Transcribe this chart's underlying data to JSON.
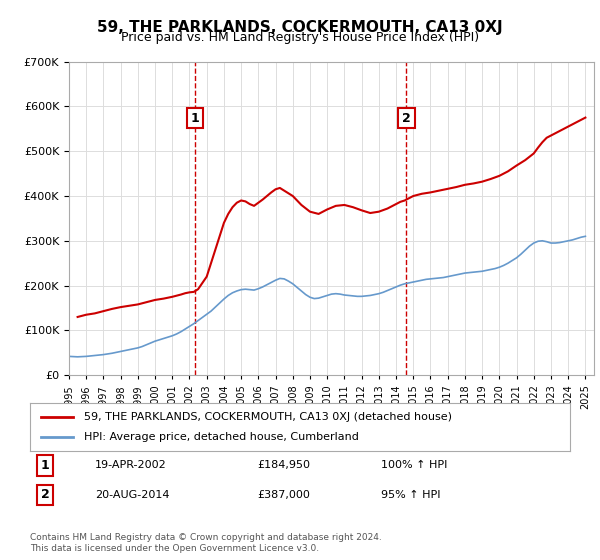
{
  "title": "59, THE PARKLANDS, COCKERMOUTH, CA13 0XJ",
  "subtitle": "Price paid vs. HM Land Registry's House Price Index (HPI)",
  "legend_line1": "59, THE PARKLANDS, COCKERMOUTH, CA13 0XJ (detached house)",
  "legend_line2": "HPI: Average price, detached house, Cumberland",
  "transaction1_label": "1",
  "transaction1_date": "19-APR-2002",
  "transaction1_price": "£184,950",
  "transaction1_pct": "100% ↑ HPI",
  "transaction1_year": 2002.3,
  "transaction2_label": "2",
  "transaction2_date": "20-AUG-2014",
  "transaction2_price": "£387,000",
  "transaction2_pct": "95% ↑ HPI",
  "transaction2_year": 2014.6,
  "footer1": "Contains HM Land Registry data © Crown copyright and database right 2024.",
  "footer2": "This data is licensed under the Open Government Licence v3.0.",
  "red_color": "#cc0000",
  "blue_color": "#6699cc",
  "dashed_color": "#cc0000",
  "background_color": "#ffffff",
  "grid_color": "#dddddd",
  "ylim": [
    0,
    700000
  ],
  "xlim_start": 1995.0,
  "xlim_end": 2025.5,
  "hpi_data": {
    "years": [
      1995.0,
      1995.25,
      1995.5,
      1995.75,
      1996.0,
      1996.25,
      1996.5,
      1996.75,
      1997.0,
      1997.25,
      1997.5,
      1997.75,
      1998.0,
      1998.25,
      1998.5,
      1998.75,
      1999.0,
      1999.25,
      1999.5,
      1999.75,
      2000.0,
      2000.25,
      2000.5,
      2000.75,
      2001.0,
      2001.25,
      2001.5,
      2001.75,
      2002.0,
      2002.25,
      2002.5,
      2002.75,
      2003.0,
      2003.25,
      2003.5,
      2003.75,
      2004.0,
      2004.25,
      2004.5,
      2004.75,
      2005.0,
      2005.25,
      2005.5,
      2005.75,
      2006.0,
      2006.25,
      2006.5,
      2006.75,
      2007.0,
      2007.25,
      2007.5,
      2007.75,
      2008.0,
      2008.25,
      2008.5,
      2008.75,
      2009.0,
      2009.25,
      2009.5,
      2009.75,
      2010.0,
      2010.25,
      2010.5,
      2010.75,
      2011.0,
      2011.25,
      2011.5,
      2011.75,
      2012.0,
      2012.25,
      2012.5,
      2012.75,
      2013.0,
      2013.25,
      2013.5,
      2013.75,
      2014.0,
      2014.25,
      2014.5,
      2014.75,
      2015.0,
      2015.25,
      2015.5,
      2015.75,
      2016.0,
      2016.25,
      2016.5,
      2016.75,
      2017.0,
      2017.25,
      2017.5,
      2017.75,
      2018.0,
      2018.25,
      2018.5,
      2018.75,
      2019.0,
      2019.25,
      2019.5,
      2019.75,
      2020.0,
      2020.25,
      2020.5,
      2020.75,
      2021.0,
      2021.25,
      2021.5,
      2021.75,
      2022.0,
      2022.25,
      2022.5,
      2022.75,
      2023.0,
      2023.25,
      2023.5,
      2023.75,
      2024.0,
      2024.25,
      2024.5,
      2024.75,
      2025.0
    ],
    "values": [
      42000,
      41500,
      41000,
      41500,
      42000,
      43000,
      44000,
      45000,
      46000,
      47500,
      49000,
      51000,
      53000,
      55000,
      57000,
      59000,
      61000,
      64000,
      68000,
      72000,
      76000,
      79000,
      82000,
      85000,
      88000,
      92000,
      97000,
      103000,
      109000,
      115000,
      122000,
      129000,
      136000,
      143000,
      152000,
      161000,
      170000,
      178000,
      184000,
      188000,
      191000,
      192000,
      191000,
      190000,
      193000,
      197000,
      202000,
      207000,
      212000,
      216000,
      215000,
      210000,
      204000,
      196000,
      188000,
      180000,
      174000,
      171000,
      172000,
      175000,
      178000,
      181000,
      182000,
      181000,
      179000,
      178000,
      177000,
      176000,
      176000,
      177000,
      178000,
      180000,
      182000,
      185000,
      189000,
      193000,
      197000,
      201000,
      204000,
      206000,
      208000,
      210000,
      212000,
      214000,
      215000,
      216000,
      217000,
      218000,
      220000,
      222000,
      224000,
      226000,
      228000,
      229000,
      230000,
      231000,
      232000,
      234000,
      236000,
      238000,
      241000,
      245000,
      250000,
      256000,
      262000,
      270000,
      279000,
      288000,
      295000,
      299000,
      300000,
      298000,
      295000,
      295000,
      296000,
      298000,
      300000,
      302000,
      305000,
      308000,
      310000
    ]
  },
  "property_data": {
    "years": [
      1995.5,
      1996.0,
      1996.5,
      1997.0,
      1997.5,
      1998.0,
      1998.5,
      1999.0,
      1999.5,
      2000.0,
      2000.5,
      2001.0,
      2001.5,
      2001.75,
      2002.0,
      2002.25,
      2002.5,
      2003.0,
      2003.5,
      2004.0,
      2004.25,
      2004.5,
      2004.75,
      2005.0,
      2005.25,
      2005.5,
      2005.75,
      2006.0,
      2006.25,
      2006.5,
      2006.75,
      2007.0,
      2007.25,
      2007.5,
      2008.0,
      2008.5,
      2009.0,
      2009.5,
      2010.0,
      2010.5,
      2011.0,
      2011.5,
      2012.0,
      2012.5,
      2013.0,
      2013.5,
      2014.0,
      2014.25,
      2014.5,
      2014.75,
      2015.0,
      2015.5,
      2016.0,
      2016.5,
      2017.0,
      2017.5,
      2018.0,
      2018.5,
      2019.0,
      2019.5,
      2020.0,
      2020.5,
      2021.0,
      2021.5,
      2022.0,
      2022.25,
      2022.5,
      2022.75,
      2023.0,
      2023.5,
      2024.0,
      2024.25,
      2024.5,
      2024.75,
      2025.0
    ],
    "values": [
      130000,
      135000,
      138000,
      143000,
      148000,
      152000,
      155000,
      158000,
      163000,
      168000,
      171000,
      175000,
      180000,
      183000,
      184950,
      186000,
      192000,
      220000,
      280000,
      340000,
      360000,
      375000,
      385000,
      390000,
      388000,
      382000,
      378000,
      385000,
      392000,
      400000,
      408000,
      415000,
      418000,
      412000,
      400000,
      380000,
      365000,
      360000,
      370000,
      378000,
      380000,
      375000,
      368000,
      362000,
      365000,
      372000,
      382000,
      387000,
      390000,
      395000,
      400000,
      405000,
      408000,
      412000,
      416000,
      420000,
      425000,
      428000,
      432000,
      438000,
      445000,
      455000,
      468000,
      480000,
      495000,
      508000,
      520000,
      530000,
      535000,
      545000,
      555000,
      560000,
      565000,
      570000,
      575000
    ]
  }
}
